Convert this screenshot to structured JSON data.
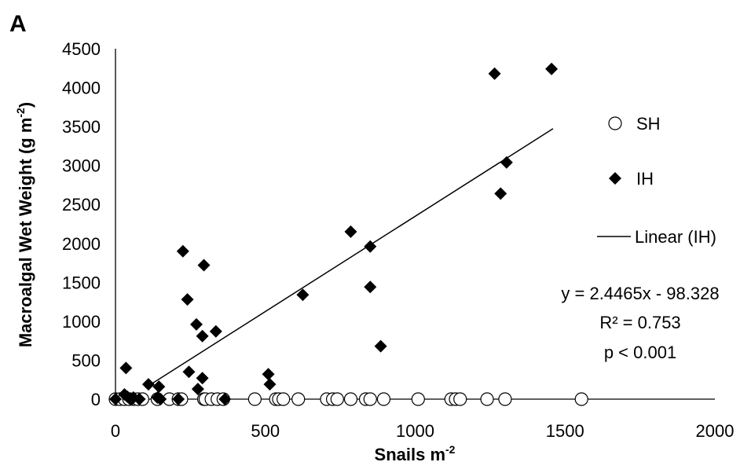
{
  "chart_data": {
    "type": "scatter",
    "panel_label": "A",
    "xlabel": "Snails m",
    "xlabel_sup": "-2",
    "ylabel": "Macroalgal Wet Weight (g m",
    "ylabel_sup": "-2",
    "ylabel_end": ")",
    "xlim": [
      0,
      2000
    ],
    "ylim": [
      0,
      4500
    ],
    "x_ticks": [
      "0",
      "500",
      "1000",
      "1500",
      "2000"
    ],
    "y_ticks": [
      "0",
      "500",
      "1000",
      "1500",
      "2000",
      "2500",
      "3000",
      "3500",
      "4000",
      "4500"
    ],
    "grid": false,
    "legend_position": "right",
    "series": [
      {
        "name": "SH",
        "marker": "circle-open",
        "color": "#000000",
        "points": [
          [
            0,
            0
          ],
          [
            15,
            0
          ],
          [
            30,
            0
          ],
          [
            45,
            0
          ],
          [
            60,
            0
          ],
          [
            75,
            0
          ],
          [
            90,
            0
          ],
          [
            140,
            0
          ],
          [
            180,
            0
          ],
          [
            210,
            0
          ],
          [
            220,
            0
          ],
          [
            295,
            0
          ],
          [
            300,
            0
          ],
          [
            320,
            0
          ],
          [
            340,
            0
          ],
          [
            360,
            0
          ],
          [
            465,
            0
          ],
          [
            535,
            0
          ],
          [
            545,
            0
          ],
          [
            560,
            0
          ],
          [
            610,
            0
          ],
          [
            705,
            0
          ],
          [
            725,
            0
          ],
          [
            740,
            0
          ],
          [
            785,
            0
          ],
          [
            835,
            0
          ],
          [
            850,
            0
          ],
          [
            895,
            0
          ],
          [
            1010,
            0
          ],
          [
            1120,
            0
          ],
          [
            1135,
            0
          ],
          [
            1150,
            0
          ],
          [
            1240,
            0
          ],
          [
            1300,
            0
          ],
          [
            1555,
            0
          ]
        ]
      },
      {
        "name": "IH",
        "marker": "diamond-filled",
        "color": "#000000",
        "points": [
          [
            0,
            0
          ],
          [
            30,
            60
          ],
          [
            35,
            400
          ],
          [
            40,
            30
          ],
          [
            50,
            10
          ],
          [
            55,
            0
          ],
          [
            60,
            20
          ],
          [
            80,
            0
          ],
          [
            110,
            190
          ],
          [
            140,
            20
          ],
          [
            145,
            160
          ],
          [
            150,
            0
          ],
          [
            210,
            0
          ],
          [
            225,
            1900
          ],
          [
            240,
            1280
          ],
          [
            245,
            350
          ],
          [
            270,
            960
          ],
          [
            275,
            130
          ],
          [
            290,
            810
          ],
          [
            290,
            270
          ],
          [
            295,
            1720
          ],
          [
            335,
            870
          ],
          [
            365,
            0
          ],
          [
            510,
            320
          ],
          [
            515,
            190
          ],
          [
            625,
            1340
          ],
          [
            785,
            2150
          ],
          [
            850,
            1960
          ],
          [
            850,
            1440
          ],
          [
            885,
            680
          ],
          [
            1265,
            4180
          ],
          [
            1285,
            2640
          ],
          [
            1305,
            3040
          ],
          [
            1455,
            4240
          ]
        ]
      }
    ],
    "trendline": {
      "name": "Linear (IH)",
      "slope": 2.4465,
      "intercept": -98.328,
      "x_range": [
        100,
        1460
      ]
    },
    "annotations": {
      "equation": "y = 2.4465x - 98.328",
      "r_squared": "R² = 0.753",
      "p_value": "p < 0.001"
    }
  }
}
